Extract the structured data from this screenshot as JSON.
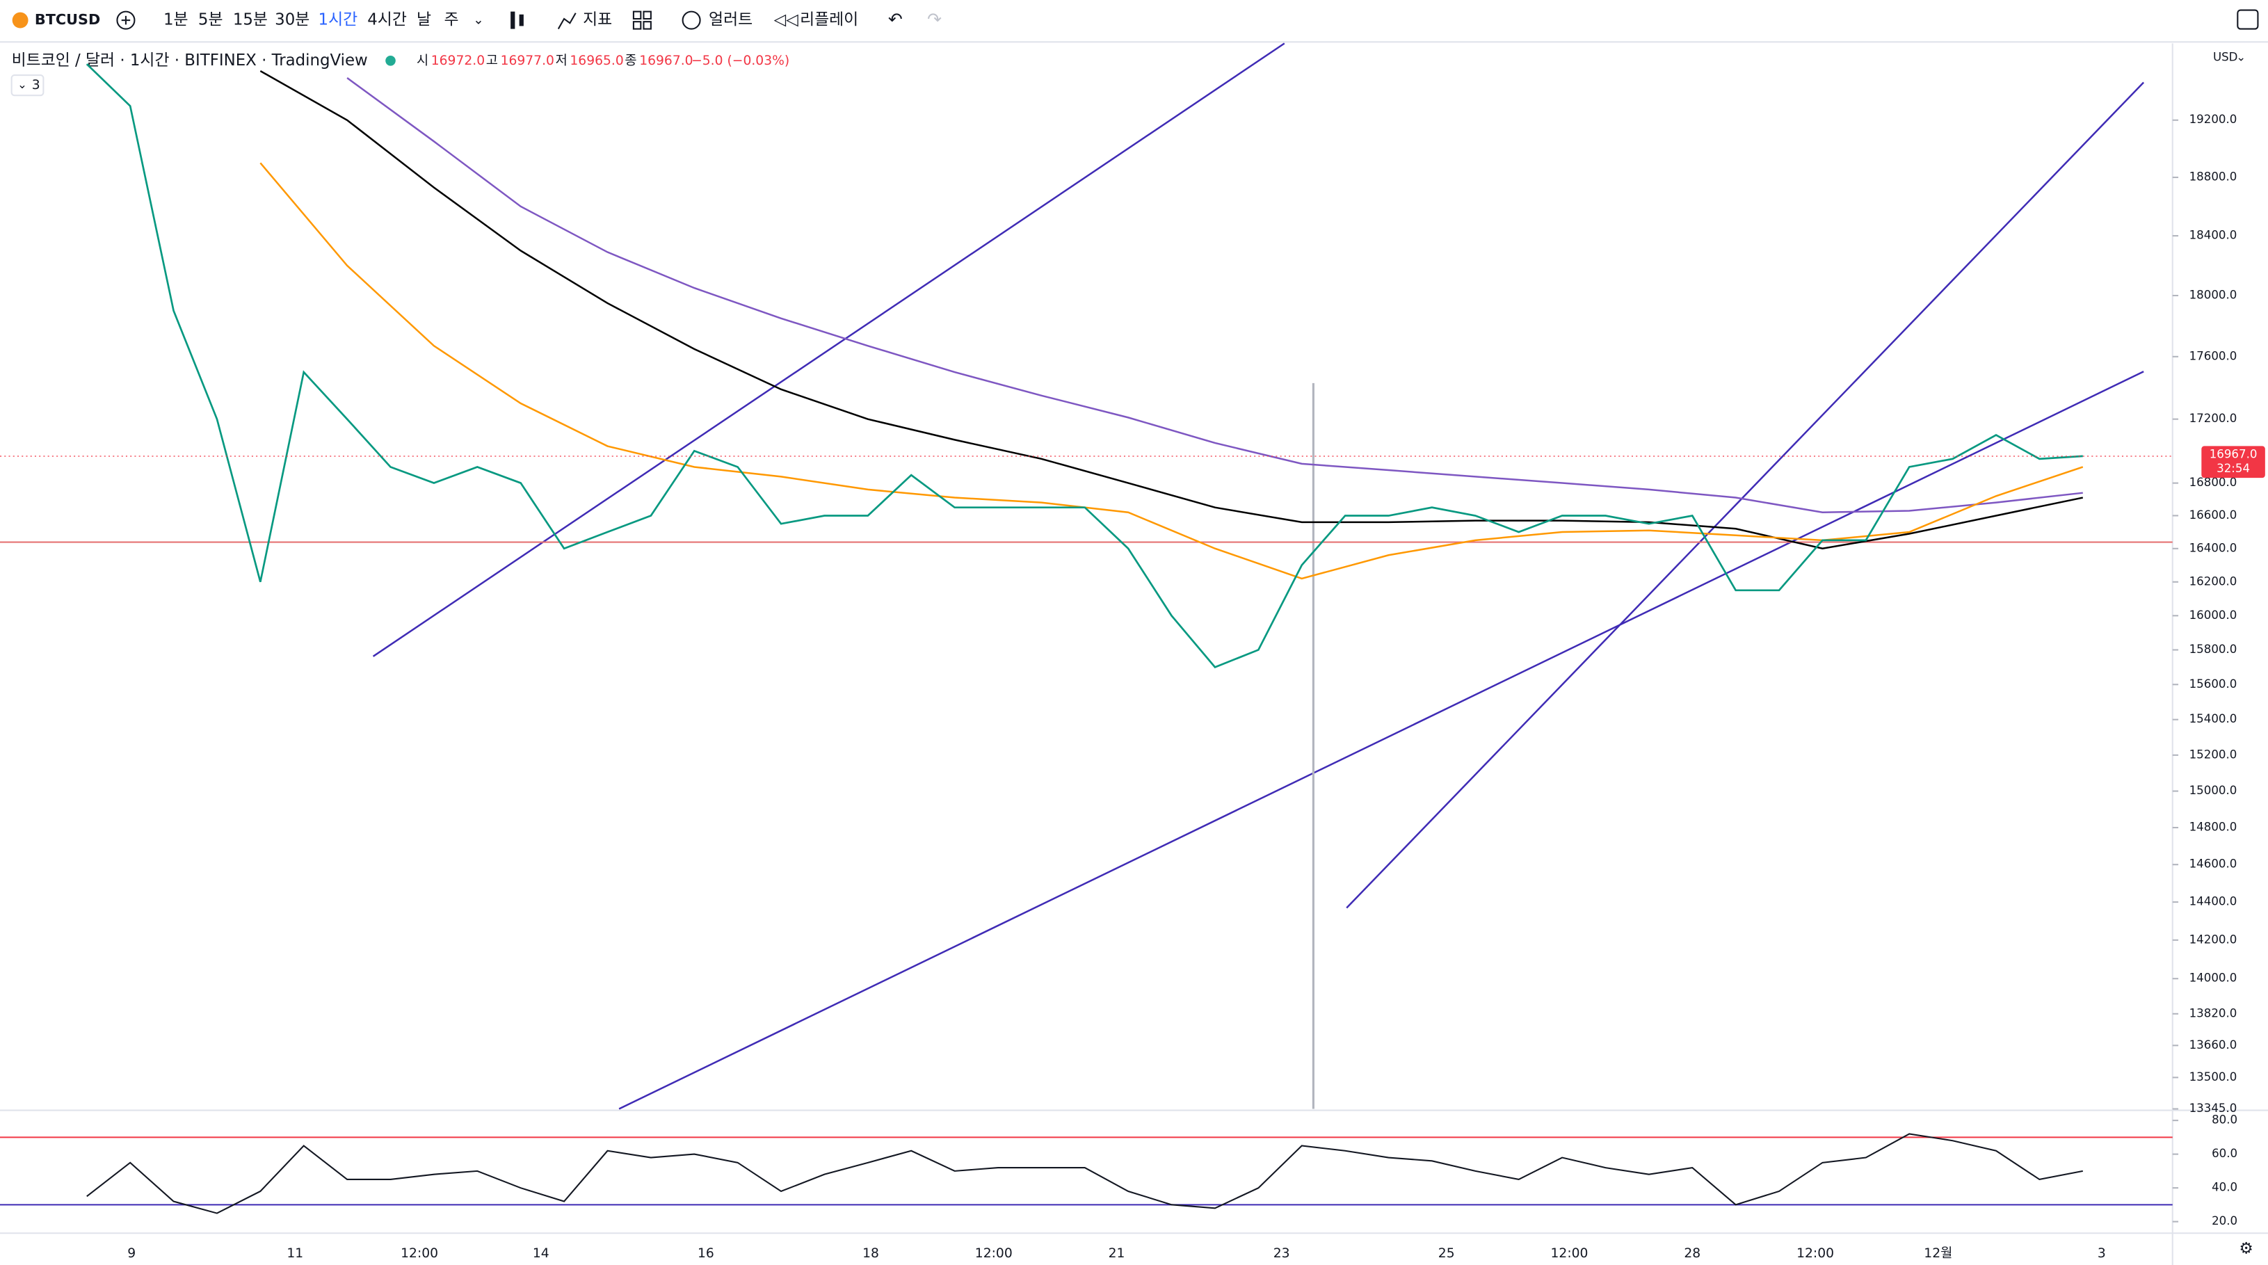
{
  "toolbar": {
    "symbol": "BTCUSD",
    "intervals": [
      "1분",
      "5분",
      "15분",
      "30분",
      "1시간",
      "4시간",
      "날",
      "주"
    ],
    "active_interval": 4,
    "indicators": "지표",
    "alert": "얼러트",
    "replay": "리플레이"
  },
  "header": {
    "title": "비트코인 / 달러 · 1시간 · BITFINEX · TradingView",
    "ohlc": [
      {
        "label": "시",
        "value": "16972.0"
      },
      {
        "label": "고",
        "value": "16977.0"
      },
      {
        "label": "저",
        "value": "16965.0"
      },
      {
        "label": "종",
        "value": "16967.0"
      }
    ],
    "change": "−5.0 (−0.03%)",
    "indicator_count": "3"
  },
  "price_pane": {
    "currency": "USD",
    "log_scale": true,
    "ylim": [
      13345,
      19750
    ],
    "yticks": [
      {
        "value": 19200,
        "label": "19200.0"
      },
      {
        "value": 18800,
        "label": "18800.0"
      },
      {
        "value": 18400,
        "label": "18400.0"
      },
      {
        "value": 18000,
        "label": "18000.0"
      },
      {
        "value": 17600,
        "label": "17600.0"
      },
      {
        "value": 17200,
        "label": "17200.0"
      },
      {
        "value": 16800,
        "label": "16800.0"
      },
      {
        "value": 16600,
        "label": "16600.0"
      },
      {
        "value": 16400,
        "label": "16400.0"
      },
      {
        "value": 16200,
        "label": "16200.0"
      },
      {
        "value": 16000,
        "label": "16000.0"
      },
      {
        "value": 15800,
        "label": "15800.0"
      },
      {
        "value": 15600,
        "label": "15600.0"
      },
      {
        "value": 15400,
        "label": "15400.0"
      },
      {
        "value": 15200,
        "label": "15200.0"
      },
      {
        "value": 15000,
        "label": "15000.0"
      },
      {
        "value": 14800,
        "label": "14800.0"
      },
      {
        "value": 14600,
        "label": "14600.0"
      },
      {
        "value": 14400,
        "label": "14400.0"
      },
      {
        "value": 14200,
        "label": "14200.0"
      },
      {
        "value": 14000,
        "label": "14000.0"
      },
      {
        "value": 13820,
        "label": "13820.0"
      },
      {
        "value": 13660,
        "label": "13660.0"
      },
      {
        "value": 13500,
        "label": "13500.0"
      },
      {
        "value": 13345,
        "label": "13345.0"
      }
    ],
    "last_price": {
      "value": 16967,
      "label": "16967.0"
    },
    "countdown": "32:54",
    "price": [
      19600,
      19300,
      17900,
      17200,
      16200,
      17500,
      17200,
      16900,
      16800,
      16900,
      16800,
      16400,
      16500,
      16600,
      17000,
      16900,
      16550,
      16600,
      16600,
      16850,
      16650,
      16650,
      16650,
      16650,
      16400,
      16000,
      15700,
      15800,
      16300,
      16600,
      16600,
      16650,
      16600,
      16500,
      16600,
      16600,
      16550,
      16600,
      16150,
      16150,
      16450,
      16450,
      16900,
      16950,
      17100,
      16950,
      16967
    ],
    "moving_averages": [
      {
        "color": "#000000",
        "values": [
          null,
          null,
          19550,
          19200,
          18730,
          18300,
          17950,
          17650,
          17390,
          17200,
          17070,
          16950,
          16800,
          16650,
          16560,
          16560,
          16570,
          16570,
          16560,
          16520,
          16400,
          16490,
          16600,
          16710
        ]
      },
      {
        "color": "#7e57c2",
        "values": [
          null,
          null,
          null,
          19500,
          19050,
          18600,
          18290,
          18050,
          17850,
          17670,
          17500,
          17350,
          17210,
          17050,
          16920,
          16880,
          16840,
          16800,
          16760,
          16710,
          16620,
          16630,
          16680,
          16740
        ]
      },
      {
        "color": "#ff9800",
        "values": [
          null,
          null,
          18900,
          18200,
          17670,
          17300,
          17030,
          16900,
          16840,
          16760,
          16710,
          16680,
          16620,
          16400,
          16220,
          16360,
          16450,
          16500,
          16510,
          16480,
          16450,
          16500,
          16720,
          16900
        ]
      }
    ]
  },
  "rsi_pane": {
    "ylim": [
      80,
      20
    ],
    "yticks": [
      {
        "value": 80,
        "label": "80.0"
      },
      {
        "value": 60,
        "label": "60.0"
      },
      {
        "value": 40,
        "label": "40.0"
      },
      {
        "value": 20,
        "label": "20.0"
      }
    ],
    "bands": [
      70,
      30
    ],
    "values": [
      35,
      55,
      32,
      25,
      38,
      65,
      45,
      45,
      48,
      50,
      40,
      32,
      62,
      58,
      60,
      55,
      38,
      48,
      55,
      62,
      50,
      52,
      52,
      52,
      38,
      30,
      28,
      40,
      65,
      62,
      58,
      56,
      50,
      45,
      58,
      52,
      48,
      52,
      30,
      38,
      55,
      58,
      72,
      68,
      62,
      45,
      50
    ]
  },
  "time_axis": [
    "9",
    "11",
    "12:00",
    "14",
    "16",
    "18",
    "12:00",
    "21",
    "23",
    "25",
    "12:00",
    "28",
    "12:00",
    "12월",
    "3"
  ]
}
